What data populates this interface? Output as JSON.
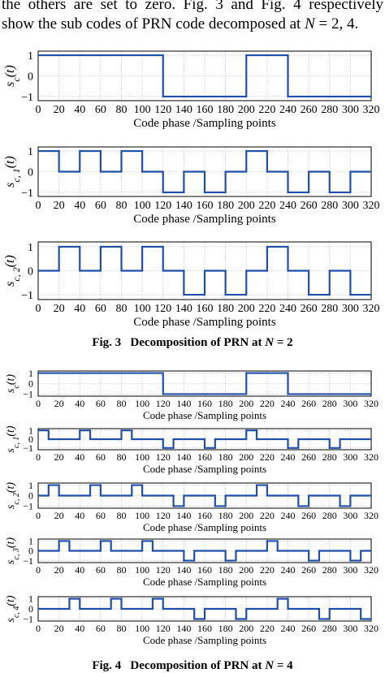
{
  "paragraph": {
    "line1": "the others are set to zero. Fig. 3 and Fig. 4 respectively",
    "line2_pre": "show the sub codes of PRN code decomposed at ",
    "line2_n": "N",
    "line2_post": " = 2, 4."
  },
  "captions": [
    {
      "label": "Fig. 3",
      "text": "Decomposition of PRN at ",
      "n": "N",
      "post": " = 2"
    },
    {
      "label": "Fig. 4",
      "text": "Decomposition of PRN at ",
      "n": "N",
      "post": " = 4"
    }
  ],
  "colors": {
    "line": "#1f4fa8",
    "grid": "#b9b9b9"
  },
  "chart_data": [
    {
      "type": "line",
      "figure": "Fig. 3",
      "ylabel": "s_c(t)",
      "xlabel": "Code phase /Sampling points",
      "xlim": [
        0,
        320
      ],
      "ylim": [
        -1.2,
        1.2
      ],
      "x": [
        0,
        120,
        120,
        200,
        200,
        240,
        240,
        320
      ],
      "y": [
        1,
        1,
        -1,
        -1,
        1,
        1,
        -1,
        -1
      ],
      "xticks": [
        "0",
        "20",
        "40",
        "60",
        "80",
        "100",
        "120",
        "140",
        "160",
        "180",
        "200",
        "220",
        "240",
        "260",
        "280",
        "300",
        "320"
      ],
      "yticks": [
        "1",
        "0",
        "−1"
      ]
    },
    {
      "type": "line",
      "figure": "Fig. 3",
      "ylabel": "s_c,1(t)",
      "xlabel": "Code phase /Sampling points",
      "xlim": [
        0,
        320
      ],
      "ylim": [
        -1.2,
        1.2
      ],
      "x": [
        0,
        20,
        20,
        40,
        40,
        60,
        60,
        80,
        80,
        100,
        100,
        120,
        120,
        140,
        140,
        160,
        160,
        180,
        180,
        200,
        200,
        220,
        220,
        240,
        240,
        260,
        260,
        280,
        280,
        300,
        300,
        320
      ],
      "y": [
        1,
        1,
        0,
        0,
        1,
        1,
        0,
        0,
        1,
        1,
        0,
        0,
        -1,
        -1,
        0,
        0,
        -1,
        -1,
        0,
        0,
        1,
        1,
        0,
        0,
        -1,
        -1,
        0,
        0,
        -1,
        -1,
        0,
        0
      ],
      "xticks": [
        "0",
        "20",
        "40",
        "60",
        "80",
        "100",
        "120",
        "140",
        "160",
        "180",
        "200",
        "220",
        "240",
        "260",
        "280",
        "300",
        "320"
      ],
      "yticks": [
        "1",
        "0",
        "−1"
      ]
    },
    {
      "type": "line",
      "figure": "Fig. 3",
      "ylabel": "s_c,2(t)",
      "xlabel": "Code phase /Sampling points",
      "xlim": [
        0,
        320
      ],
      "ylim": [
        -1.2,
        1.2
      ],
      "x": [
        0,
        20,
        20,
        40,
        40,
        60,
        60,
        80,
        80,
        100,
        100,
        120,
        120,
        140,
        140,
        160,
        160,
        180,
        180,
        200,
        200,
        220,
        220,
        240,
        240,
        260,
        260,
        280,
        280,
        300,
        300,
        320
      ],
      "y": [
        0,
        0,
        1,
        1,
        0,
        0,
        1,
        1,
        0,
        0,
        1,
        1,
        0,
        0,
        -1,
        -1,
        0,
        0,
        -1,
        -1,
        0,
        0,
        1,
        1,
        0,
        0,
        -1,
        -1,
        0,
        0,
        -1,
        -1
      ],
      "xticks": [
        "0",
        "20",
        "40",
        "60",
        "80",
        "100",
        "120",
        "140",
        "160",
        "180",
        "200",
        "220",
        "240",
        "260",
        "280",
        "300",
        "320"
      ],
      "yticks": [
        "1",
        "0",
        "−1"
      ]
    },
    {
      "type": "line",
      "figure": "Fig. 4",
      "ylabel": "s_c(t)",
      "xlabel": "Code phase /Sampling points",
      "xlim": [
        0,
        320
      ],
      "ylim": [
        -1.2,
        1.2
      ],
      "x": [
        0,
        120,
        120,
        200,
        200,
        240,
        240,
        320
      ],
      "y": [
        1,
        1,
        -1,
        -1,
        1,
        1,
        -1,
        -1
      ],
      "xticks": [
        "0",
        "20",
        "40",
        "60",
        "80",
        "100",
        "120",
        "140",
        "160",
        "180",
        "200",
        "220",
        "240",
        "260",
        "280",
        "300",
        "320"
      ],
      "yticks": [
        "1",
        "0",
        "−1"
      ]
    },
    {
      "type": "line",
      "figure": "Fig. 4",
      "ylabel": "s_c,1(t)",
      "xlabel": "Code phase /Sampling points",
      "xlim": [
        0,
        320
      ],
      "ylim": [
        -1.2,
        1.2
      ],
      "x": [
        0,
        10,
        10,
        40,
        40,
        50,
        50,
        60,
        60,
        80,
        80,
        90,
        90,
        120,
        120,
        130,
        130,
        160,
        160,
        170,
        170,
        200,
        200,
        210,
        210,
        240,
        240,
        250,
        250,
        280,
        280,
        290,
        290,
        320
      ],
      "y": [
        1,
        1,
        0,
        0,
        1,
        1,
        0,
        0,
        0,
        0,
        1,
        1,
        0,
        0,
        -1,
        -1,
        0,
        0,
        -1,
        -1,
        0,
        0,
        1,
        1,
        0,
        0,
        -1,
        -1,
        0,
        0,
        -1,
        -1,
        0,
        0
      ],
      "xticks": [
        "0",
        "20",
        "40",
        "60",
        "80",
        "100",
        "120",
        "140",
        "160",
        "180",
        "200",
        "220",
        "240",
        "260",
        "280",
        "300",
        "320"
      ],
      "yticks": [
        "1",
        "0",
        "−1"
      ]
    },
    {
      "type": "line",
      "figure": "Fig. 4",
      "ylabel": "s_c,2(t)",
      "xlabel": "Code phase /Sampling points",
      "xlim": [
        0,
        320
      ],
      "ylim": [
        -1.2,
        1.2
      ],
      "x": [
        0,
        10,
        10,
        20,
        20,
        50,
        50,
        60,
        60,
        90,
        90,
        100,
        100,
        130,
        130,
        140,
        140,
        170,
        170,
        180,
        180,
        210,
        210,
        220,
        220,
        250,
        250,
        260,
        260,
        290,
        290,
        300,
        300,
        320
      ],
      "y": [
        0,
        0,
        1,
        1,
        0,
        0,
        1,
        1,
        0,
        0,
        1,
        1,
        0,
        0,
        -1,
        -1,
        0,
        0,
        -1,
        -1,
        0,
        0,
        1,
        1,
        0,
        0,
        -1,
        -1,
        0,
        0,
        -1,
        -1,
        0,
        0
      ],
      "xticks": [
        "0",
        "20",
        "40",
        "60",
        "80",
        "100",
        "120",
        "140",
        "160",
        "180",
        "200",
        "220",
        "240",
        "260",
        "280",
        "300",
        "320"
      ],
      "yticks": [
        "1",
        "0",
        "−1"
      ]
    },
    {
      "type": "line",
      "figure": "Fig. 4",
      "ylabel": "s_c,3(t)",
      "xlabel": "Code phase /Sampling points",
      "xlim": [
        0,
        320
      ],
      "ylim": [
        -1.2,
        1.2
      ],
      "x": [
        0,
        20,
        20,
        30,
        30,
        60,
        60,
        70,
        70,
        100,
        100,
        110,
        110,
        140,
        140,
        150,
        150,
        180,
        180,
        190,
        190,
        220,
        220,
        230,
        230,
        260,
        260,
        270,
        270,
        300,
        300,
        310,
        310,
        320
      ],
      "y": [
        0,
        0,
        1,
        1,
        0,
        0,
        1,
        1,
        0,
        0,
        1,
        1,
        0,
        0,
        -1,
        -1,
        0,
        0,
        -1,
        -1,
        0,
        0,
        1,
        1,
        0,
        0,
        -1,
        -1,
        0,
        0,
        -1,
        -1,
        0,
        0
      ],
      "xticks": [
        "0",
        "20",
        "40",
        "60",
        "80",
        "100",
        "120",
        "140",
        "160",
        "180",
        "200",
        "220",
        "240",
        "260",
        "280",
        "300",
        "320"
      ],
      "yticks": [
        "1",
        "0",
        "−1"
      ]
    },
    {
      "type": "line",
      "figure": "Fig. 4",
      "ylabel": "s_c,4(t)",
      "xlabel": "Code phase /Sampling points",
      "xlim": [
        0,
        320
      ],
      "ylim": [
        -1.2,
        1.2
      ],
      "x": [
        0,
        30,
        30,
        40,
        40,
        70,
        70,
        80,
        80,
        110,
        110,
        120,
        120,
        150,
        150,
        160,
        160,
        190,
        190,
        200,
        200,
        230,
        230,
        240,
        240,
        270,
        270,
        280,
        280,
        310,
        310,
        320
      ],
      "y": [
        0,
        0,
        1,
        1,
        0,
        0,
        1,
        1,
        0,
        0,
        1,
        1,
        0,
        0,
        -1,
        -1,
        0,
        0,
        -1,
        -1,
        0,
        0,
        1,
        1,
        0,
        0,
        -1,
        -1,
        0,
        0,
        -1,
        -1
      ],
      "xticks": [
        "0",
        "20",
        "40",
        "60",
        "80",
        "100",
        "120",
        "140",
        "160",
        "180",
        "200",
        "220",
        "240",
        "260",
        "280",
        "300",
        "320"
      ],
      "yticks": [
        "1",
        "0",
        "−1"
      ]
    }
  ]
}
